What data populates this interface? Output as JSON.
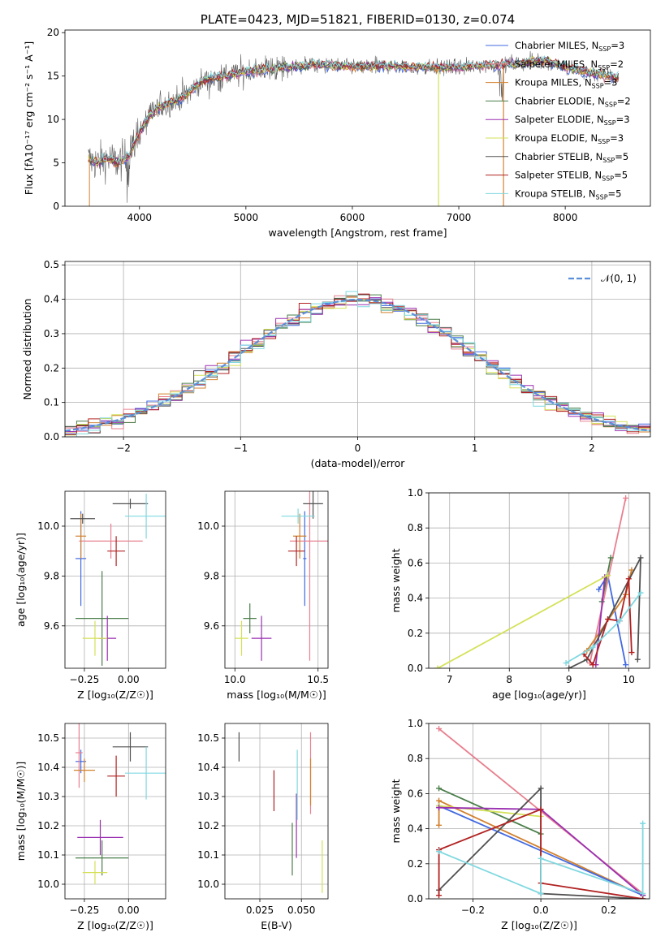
{
  "chart_data": [
    {
      "type": "line",
      "title": "PLATE=0423, MJD=51821, FIBERID=0130, z=0.074",
      "xlabel": "wavelength [Angstrom, rest frame]",
      "ylabel": "Flux [fλ10⁻¹⁷ erg cm⁻² s⁻¹ A⁻¹]",
      "xlim": [
        3300,
        8800
      ],
      "ylim": [
        0,
        20.3
      ],
      "xticks": [
        "4000",
        "5000",
        "6000",
        "7000",
        "8000"
      ],
      "yticks": [
        "0",
        "5",
        "10",
        "15",
        "20"
      ],
      "legend_position": "right",
      "series": [
        {
          "name": "Chabrier MILES, N",
          "sub": "SSP",
          "suffix": "=3",
          "color": "#4169e1"
        },
        {
          "name": "Salpeter MILES, N",
          "sub": "SSP",
          "suffix": "=2",
          "color": "#e8808f"
        },
        {
          "name": "Kroupa MILES, N",
          "sub": "SSP",
          "suffix": "=3",
          "color": "#d2812e"
        },
        {
          "name": "Chabrier ELODIE, N",
          "sub": "SSP",
          "suffix": "=2",
          "color": "#4a7d4a"
        },
        {
          "name": "Salpeter ELODIE, N",
          "sub": "SSP",
          "suffix": "=3",
          "color": "#9a2fb0"
        },
        {
          "name": "Kroupa ELODIE, N",
          "sub": "SSP",
          "suffix": "=3",
          "color": "#d4e157"
        },
        {
          "name": "Chabrier STELIB, N",
          "sub": "SSP",
          "suffix": "=5",
          "color": "#505050"
        },
        {
          "name": "Salpeter STELIB, N",
          "sub": "SSP",
          "suffix": "=5",
          "color": "#b22222"
        },
        {
          "name": "Kroupa STELIB, N",
          "sub": "SSP",
          "suffix": "=5",
          "color": "#7fd8e0"
        }
      ],
      "continuum": {
        "x": [
          3500,
          3600,
          3700,
          3800,
          3900,
          4000,
          4100,
          4200,
          4300,
          4400,
          4500,
          4600,
          4800,
          5000,
          5200,
          5400,
          5600,
          5800,
          6000,
          6200,
          6400,
          6600,
          6800,
          7000,
          7200,
          7400,
          7600,
          7800,
          8000,
          8200,
          8400,
          8600
        ],
        "y": [
          5.5,
          5.0,
          5.5,
          5.0,
          5.8,
          8.5,
          10.5,
          11.5,
          12.0,
          12.5,
          13.5,
          14.5,
          15.0,
          15.5,
          15.8,
          16.0,
          16.3,
          16.2,
          16.1,
          16.1,
          16.2,
          16.0,
          16.0,
          16.0,
          16.2,
          16.3,
          16.5,
          16.8,
          16.0,
          15.5,
          15.0,
          14.5
        ]
      }
    },
    {
      "type": "bar",
      "xlabel": "(data-model)/error",
      "ylabel": "Normed distribution",
      "xlim": [
        -2.5,
        2.5
      ],
      "ylim": [
        0,
        0.51
      ],
      "xticks": [
        "−2",
        "−1",
        "0",
        "1",
        "2"
      ],
      "yticks": [
        "0.0",
        "0.1",
        "0.2",
        "0.3",
        "0.4",
        "0.5"
      ],
      "legend": "𝒩(0, 1)",
      "legend_position": "top-right",
      "bin_width": 0.1
    },
    {
      "type": "scatter",
      "xlabel": "Z [log₁₀(Z/Z☉)]",
      "ylabel": "age  [log₁₀(age/yr)]",
      "xlim": [
        -0.36,
        0.21
      ],
      "ylim": [
        9.43,
        10.14
      ],
      "xticks": [
        "−0.25",
        "0.00"
      ],
      "yticks": [
        "9.6",
        "9.8",
        "10.0"
      ],
      "points": [
        {
          "x": -0.27,
          "y": 9.87,
          "xerr": 0.03,
          "yerr": 0.19,
          "c": "#4169e1"
        },
        {
          "x": -0.1,
          "y": 9.94,
          "xerr": 0.18,
          "yerr": 0.07,
          "c": "#e8808f"
        },
        {
          "x": -0.27,
          "y": 9.96,
          "xerr": 0.03,
          "yerr": 0.09,
          "c": "#d2812e"
        },
        {
          "x": -0.15,
          "y": 9.63,
          "xerr": 0.15,
          "yerr": 0.19,
          "c": "#4a7d4a"
        },
        {
          "x": -0.12,
          "y": 9.55,
          "xerr": 0.05,
          "yerr": 0.09,
          "c": "#9a2fb0"
        },
        {
          "x": -0.19,
          "y": 9.55,
          "xerr": 0.07,
          "yerr": 0.07,
          "c": "#d4e157"
        },
        {
          "x": 0.01,
          "y": 10.09,
          "xerr": 0.1,
          "yerr": 0.02,
          "c": "#505050"
        },
        {
          "x": -0.07,
          "y": 9.9,
          "xerr": 0.05,
          "yerr": 0.06,
          "c": "#b22222"
        },
        {
          "x": 0.1,
          "y": 10.04,
          "xerr": 0.12,
          "yerr": 0.09,
          "c": "#7fd8e0"
        },
        {
          "x": -0.26,
          "y": 10.03,
          "xerr": 0.07,
          "yerr": 0.02,
          "c": "#505050"
        }
      ]
    },
    {
      "type": "scatter",
      "xlabel": "mass [log₁₀(M/M☉)]",
      "ylabel": "",
      "xlim": [
        9.94,
        10.56
      ],
      "ylim": [
        9.43,
        10.14
      ],
      "xticks": [
        "10.0",
        "10.5"
      ],
      "yticks": [
        "9.6",
        "9.8",
        "10.0"
      ],
      "points": [
        {
          "x": 10.42,
          "y": 9.87,
          "xerr": 0.01,
          "yerr": 0.19,
          "c": "#4169e1"
        },
        {
          "x": 10.45,
          "y": 9.94,
          "xerr": 0.12,
          "yerr": 0.48,
          "c": "#e8808f"
        },
        {
          "x": 10.39,
          "y": 9.96,
          "xerr": 0.04,
          "yerr": 0.09,
          "c": "#d2812e"
        },
        {
          "x": 10.09,
          "y": 9.63,
          "xerr": 0.04,
          "yerr": 0.06,
          "c": "#4a7d4a"
        },
        {
          "x": 10.16,
          "y": 9.55,
          "xerr": 0.06,
          "yerr": 0.09,
          "c": "#9a2fb0"
        },
        {
          "x": 10.04,
          "y": 9.55,
          "xerr": 0.04,
          "yerr": 0.07,
          "c": "#d4e157"
        },
        {
          "x": 10.47,
          "y": 10.09,
          "xerr": 0.06,
          "yerr": 0.06,
          "c": "#505050"
        },
        {
          "x": 10.37,
          "y": 9.9,
          "xerr": 0.05,
          "yerr": 0.06,
          "c": "#b22222"
        },
        {
          "x": 10.38,
          "y": 10.04,
          "xerr": 0.1,
          "yerr": 0.03,
          "c": "#7fd8e0"
        }
      ]
    },
    {
      "type": "line",
      "xlabel": "age  [log₁₀(age/yr)]",
      "ylabel": "mass weight",
      "xlim": [
        6.65,
        10.35
      ],
      "ylim": [
        0,
        1.0
      ],
      "xticks": [
        "7",
        "8",
        "9",
        "10"
      ],
      "yticks": [
        "0.0",
        "0.2",
        "0.4",
        "0.6",
        "0.8",
        "1.0"
      ],
      "series": [
        {
          "c": "#4169e1",
          "x": [
            9.5,
            9.65,
            9.95
          ],
          "y": [
            0.45,
            0.53,
            0.02
          ]
        },
        {
          "c": "#e8808f",
          "x": [
            9.35,
            9.95
          ],
          "y": [
            0.03,
            0.97
          ]
        },
        {
          "c": "#d2812e",
          "x": [
            9.3,
            9.95,
            10.05
          ],
          "y": [
            0.1,
            0.42,
            0.56
          ]
        },
        {
          "c": "#4a7d4a",
          "x": [
            9.55,
            9.7
          ],
          "y": [
            0.38,
            0.63
          ]
        },
        {
          "c": "#9a2fb0",
          "x": [
            9.45,
            9.6
          ],
          "y": [
            0.02,
            0.52
          ]
        },
        {
          "c": "#d4e157",
          "x": [
            6.8,
            9.65
          ],
          "y": [
            0.0,
            0.53
          ]
        },
        {
          "c": "#505050",
          "x": [
            9.0,
            9.3,
            10.2,
            10.15
          ],
          "y": [
            0.0,
            0.05,
            0.63,
            0.05
          ]
        },
        {
          "c": "#b22222",
          "x": [
            9.25,
            9.4,
            9.65,
            9.85,
            10.0,
            10.05
          ],
          "y": [
            0.08,
            0.02,
            0.28,
            0.27,
            0.51,
            0.09
          ]
        },
        {
          "c": "#7fd8e0",
          "x": [
            8.95,
            9.4,
            9.85,
            10.2
          ],
          "y": [
            0.03,
            0.12,
            0.27,
            0.43
          ]
        }
      ]
    },
    {
      "type": "scatter",
      "xlabel": "Z [log₁₀(Z/Z☉)]",
      "ylabel": "mass [log₁₀(M/M☉)]",
      "xlim": [
        -0.36,
        0.21
      ],
      "ylim": [
        9.95,
        10.55
      ],
      "xticks": [
        "−0.25",
        "0.00"
      ],
      "yticks": [
        "10.0",
        "10.1",
        "10.2",
        "10.3",
        "10.4",
        "10.5"
      ],
      "points": [
        {
          "x": -0.27,
          "y": 10.42,
          "xerr": 0.03,
          "yerr": 0.04,
          "c": "#4169e1"
        },
        {
          "x": -0.28,
          "y": 10.45,
          "xerr": 0.02,
          "yerr": 0.12,
          "c": "#e8808f"
        },
        {
          "x": -0.25,
          "y": 10.39,
          "xerr": 0.06,
          "yerr": 0.04,
          "c": "#d2812e"
        },
        {
          "x": -0.15,
          "y": 10.09,
          "xerr": 0.15,
          "yerr": 0.06,
          "c": "#4a7d4a"
        },
        {
          "x": -0.16,
          "y": 10.16,
          "xerr": 0.13,
          "yerr": 0.06,
          "c": "#9a2fb0"
        },
        {
          "x": -0.19,
          "y": 10.04,
          "xerr": 0.07,
          "yerr": 0.04,
          "c": "#d4e157"
        },
        {
          "x": 0.01,
          "y": 10.47,
          "xerr": 0.1,
          "yerr": 0.05,
          "c": "#505050"
        },
        {
          "x": -0.07,
          "y": 10.37,
          "xerr": 0.05,
          "yerr": 0.07,
          "c": "#b22222"
        },
        {
          "x": 0.1,
          "y": 10.38,
          "xerr": 0.12,
          "yerr": 0.09,
          "c": "#7fd8e0"
        }
      ]
    },
    {
      "type": "scatter",
      "xlabel": "E(B-V)",
      "ylabel": "",
      "xlim": [
        0.004,
        0.066
      ],
      "ylim": [
        9.95,
        10.55
      ],
      "xticks": [
        "0.025",
        "0.050"
      ],
      "yticks": [
        "10.0",
        "10.1",
        "10.2",
        "10.3",
        "10.4",
        "10.5"
      ],
      "points": [
        {
          "x": 0.0125,
          "y": 10.47,
          "yerr": 0.05,
          "c": "#505050"
        },
        {
          "x": 0.0335,
          "y": 10.32,
          "yerr": 0.07,
          "c": "#b22222"
        },
        {
          "x": 0.0445,
          "y": 10.12,
          "yerr": 0.09,
          "c": "#4a7d4a"
        },
        {
          "x": 0.047,
          "y": 10.2,
          "yerr": 0.11,
          "c": "#9a2fb0"
        },
        {
          "x": 0.0475,
          "y": 10.34,
          "yerr": 0.12,
          "c": "#7fd8e0"
        },
        {
          "x": 0.0555,
          "y": 10.38,
          "yerr": 0.14,
          "c": "#e8808f"
        },
        {
          "x": 0.0555,
          "y": 10.35,
          "yerr": 0.08,
          "c": "#d2812e"
        },
        {
          "x": 0.0625,
          "y": 10.06,
          "yerr": 0.09,
          "c": "#d4e157"
        }
      ]
    },
    {
      "type": "line",
      "xlabel": "Z [log₁₀(Z/Z☉)]",
      "ylabel": "mass weight",
      "xlim": [
        -0.33,
        0.32
      ],
      "ylim": [
        0,
        1.0
      ],
      "xticks": [
        "−0.2",
        "0.0",
        "0.2"
      ],
      "yticks": [
        "0.0",
        "0.2",
        "0.4",
        "0.6",
        "0.8",
        "1.0"
      ],
      "series": [
        {
          "c": "#e8808f",
          "x": [
            -0.3,
            0.3
          ],
          "y": [
            0.97,
            0.03
          ]
        },
        {
          "c": "#4a7d4a",
          "x": [
            -0.3,
            0.0
          ],
          "y": [
            0.63,
            0.37
          ]
        },
        {
          "c": "#d2812e",
          "x": [
            -0.3,
            -0.3,
            0.3
          ],
          "y": [
            0.42,
            0.56,
            0.02
          ]
        },
        {
          "c": "#4169e1",
          "x": [
            -0.3,
            0.3
          ],
          "y": [
            0.53,
            0.02
          ]
        },
        {
          "c": "#d4e157",
          "x": [
            -0.3,
            0.0
          ],
          "y": [
            0.53,
            0.47
          ]
        },
        {
          "c": "#9a2fb0",
          "x": [
            -0.3,
            0.0,
            0.3
          ],
          "y": [
            0.52,
            0.51,
            0.02
          ]
        },
        {
          "c": "#505050",
          "x": [
            -0.3,
            0.0,
            0.0,
            0.3
          ],
          "y": [
            0.05,
            0.63,
            0.03,
            0.0
          ]
        },
        {
          "c": "#b22222",
          "x": [
            -0.3,
            -0.3,
            0.0,
            0.0,
            0.3
          ],
          "y": [
            0.02,
            0.28,
            0.51,
            0.09,
            0.0
          ]
        },
        {
          "c": "#7fd8e0",
          "x": [
            -0.3,
            0.0,
            0.0,
            0.3,
            0.3
          ],
          "y": [
            0.27,
            0.03,
            0.23,
            0.03,
            0.43
          ]
        }
      ]
    }
  ]
}
